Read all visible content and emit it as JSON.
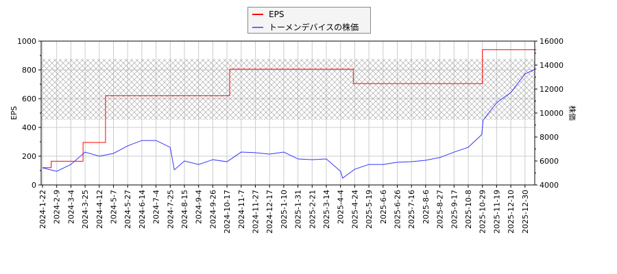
{
  "chart_data": {
    "type": "line",
    "xlabel": "",
    "ylabel_left": "EPS",
    "ylabel_right": "株価",
    "ylim_left": [
      0,
      1000
    ],
    "ylim_right": [
      4000,
      16000
    ],
    "yticks_left": [
      0,
      200,
      400,
      600,
      800,
      1000
    ],
    "yticks_right": [
      4000,
      6000,
      8000,
      10000,
      12000,
      14000,
      16000
    ],
    "xticks": [
      "2024-1-22",
      "2024-2-9",
      "2024-3-4",
      "2024-3-25",
      "2024-4-12",
      "2024-5-7",
      "2024-5-27",
      "2024-6-14",
      "2024-7-4",
      "2024-7-25",
      "2024-8-15",
      "2024-9-4",
      "2024-9-26",
      "2024-10-17",
      "2024-11-7",
      "2024-11-27",
      "2024-12-17",
      "2025-1-10",
      "2025-1-31",
      "2025-2-21",
      "2025-3-14",
      "2025-4-4",
      "2025-4-24",
      "2025-5-19",
      "2025-6-6",
      "2025-6-26",
      "2025-7-16",
      "2025-8-6",
      "2025-8-27",
      "2025-9-17",
      "2025-10-8",
      "2025-10-29",
      "2025-11-19",
      "2025-12-10",
      "2025-12-30"
    ],
    "grid": true,
    "legend_position": "top-center",
    "series": [
      {
        "name": "EPS",
        "axis": "left",
        "color": "#ff0000",
        "step": true,
        "points": [
          [
            "2024-1-22",
            120
          ],
          [
            "2024-2-2",
            165
          ],
          [
            "2024-3-22",
            295
          ],
          [
            "2024-4-23",
            620
          ],
          [
            "2024-10-21",
            805
          ],
          [
            "2025-4-22",
            705
          ],
          [
            "2025-10-29",
            940
          ],
          [
            "2026-1-15",
            940
          ]
        ]
      },
      {
        "name": "トーメンデバイスの株価",
        "axis": "right",
        "color": "#3333ff",
        "points": [
          [
            "2024-1-22",
            5430
          ],
          [
            "2024-2-9",
            5140
          ],
          [
            "2024-3-4",
            5710
          ],
          [
            "2024-3-25",
            6740
          ],
          [
            "2024-4-12",
            6400
          ],
          [
            "2024-5-7",
            6630
          ],
          [
            "2024-5-27",
            7260
          ],
          [
            "2024-6-14",
            7710
          ],
          [
            "2024-7-4",
            7710
          ],
          [
            "2024-7-25",
            7140
          ],
          [
            "2024-7-31",
            5260
          ],
          [
            "2024-8-15",
            6000
          ],
          [
            "2024-9-4",
            5710
          ],
          [
            "2024-9-26",
            6110
          ],
          [
            "2024-10-17",
            5940
          ],
          [
            "2024-11-7",
            6740
          ],
          [
            "2024-11-27",
            6690
          ],
          [
            "2024-12-17",
            6570
          ],
          [
            "2025-1-10",
            6740
          ],
          [
            "2025-1-31",
            6170
          ],
          [
            "2025-2-21",
            6110
          ],
          [
            "2025-3-14",
            6170
          ],
          [
            "2025-4-4",
            5140
          ],
          [
            "2025-4-7",
            4570
          ],
          [
            "2025-4-24",
            5310
          ],
          [
            "2025-5-19",
            5710
          ],
          [
            "2025-6-6",
            5710
          ],
          [
            "2025-6-26",
            5890
          ],
          [
            "2025-7-16",
            5940
          ],
          [
            "2025-8-6",
            6060
          ],
          [
            "2025-8-27",
            6290
          ],
          [
            "2025-9-17",
            6740
          ],
          [
            "2025-10-8",
            7140
          ],
          [
            "2025-10-28",
            8200
          ],
          [
            "2025-10-30",
            9400
          ],
          [
            "2025-11-19",
            10860
          ],
          [
            "2025-12-10",
            11710
          ],
          [
            "2025-12-30",
            13260
          ],
          [
            "2026-1-15",
            13700
          ]
        ]
      }
    ]
  }
}
